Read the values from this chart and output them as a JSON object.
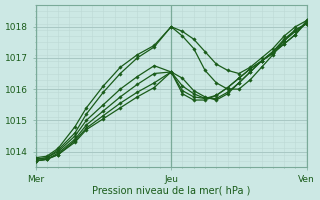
{
  "xlabel": "Pression niveau de la mer( hPa )",
  "background_color": "#cce8e4",
  "grid_major_color": "#a8c8c4",
  "grid_minor_color": "#bcd8d4",
  "line_color": "#1a5c1a",
  "marker_color": "#1a5c1a",
  "ylim": [
    1013.5,
    1018.6
  ],
  "xlim": [
    0,
    48
  ],
  "yticks": [
    1014,
    1015,
    1016,
    1017,
    1018
  ],
  "xtick_positions": [
    0,
    24,
    48
  ],
  "xtick_labels": [
    "Mer",
    "Jeu",
    "Ven"
  ],
  "lines": [
    {
      "x": [
        0,
        2,
        4,
        7,
        9,
        12,
        15,
        18,
        21,
        24,
        26,
        28,
        30,
        32,
        34,
        36,
        38,
        40,
        42,
        44,
        46,
        48
      ],
      "y": [
        1013.8,
        1013.85,
        1014.1,
        1014.8,
        1015.4,
        1016.1,
        1016.7,
        1017.1,
        1017.4,
        1018.0,
        1017.85,
        1017.6,
        1017.2,
        1016.8,
        1016.6,
        1016.5,
        1016.7,
        1017.0,
        1017.3,
        1017.7,
        1018.0,
        1018.2
      ]
    },
    {
      "x": [
        0,
        2,
        4,
        7,
        9,
        12,
        15,
        18,
        21,
        24,
        26,
        28,
        30,
        32,
        34,
        36,
        38,
        40,
        42,
        44,
        46,
        48
      ],
      "y": [
        1013.75,
        1013.8,
        1014.05,
        1014.6,
        1015.2,
        1015.9,
        1016.5,
        1017.0,
        1017.35,
        1018.0,
        1017.7,
        1017.3,
        1016.6,
        1016.2,
        1016.0,
        1016.0,
        1016.3,
        1016.7,
        1017.1,
        1017.55,
        1017.9,
        1018.1
      ]
    },
    {
      "x": [
        0,
        2,
        4,
        7,
        9,
        12,
        15,
        18,
        21,
        24,
        26,
        28,
        30,
        32,
        34,
        36,
        38,
        40,
        42,
        44,
        46,
        48
      ],
      "y": [
        1013.75,
        1013.8,
        1014.0,
        1014.5,
        1015.0,
        1015.5,
        1016.0,
        1016.4,
        1016.75,
        1016.55,
        1016.35,
        1015.95,
        1015.75,
        1015.65,
        1015.85,
        1016.2,
        1016.55,
        1016.9,
        1017.2,
        1017.6,
        1017.9,
        1018.1
      ]
    },
    {
      "x": [
        0,
        2,
        4,
        7,
        9,
        12,
        15,
        18,
        21,
        24,
        26,
        28,
        30,
        32,
        34,
        36,
        38,
        40,
        42,
        44,
        46,
        48
      ],
      "y": [
        1013.7,
        1013.75,
        1013.95,
        1014.4,
        1014.85,
        1015.3,
        1015.75,
        1016.15,
        1016.5,
        1016.55,
        1016.1,
        1015.85,
        1015.7,
        1015.7,
        1015.9,
        1016.2,
        1016.55,
        1016.9,
        1017.2,
        1017.55,
        1017.85,
        1018.1
      ]
    },
    {
      "x": [
        0,
        2,
        4,
        7,
        9,
        12,
        15,
        18,
        21,
        24,
        26,
        28,
        30,
        32,
        34,
        36,
        38,
        40,
        42,
        44,
        46,
        48
      ],
      "y": [
        1013.7,
        1013.75,
        1013.9,
        1014.35,
        1014.75,
        1015.15,
        1015.55,
        1015.9,
        1016.2,
        1016.55,
        1015.95,
        1015.75,
        1015.7,
        1015.8,
        1016.05,
        1016.35,
        1016.65,
        1016.9,
        1017.15,
        1017.45,
        1017.75,
        1018.15
      ]
    },
    {
      "x": [
        0,
        2,
        4,
        7,
        9,
        12,
        15,
        18,
        21,
        24,
        26,
        28,
        30,
        32,
        34,
        36,
        38,
        40,
        42,
        44,
        46,
        48
      ],
      "y": [
        1013.7,
        1013.75,
        1013.9,
        1014.3,
        1014.7,
        1015.05,
        1015.4,
        1015.75,
        1016.05,
        1016.55,
        1015.85,
        1015.65,
        1015.65,
        1015.8,
        1016.05,
        1016.35,
        1016.65,
        1016.9,
        1017.15,
        1017.45,
        1017.75,
        1018.2
      ]
    }
  ]
}
